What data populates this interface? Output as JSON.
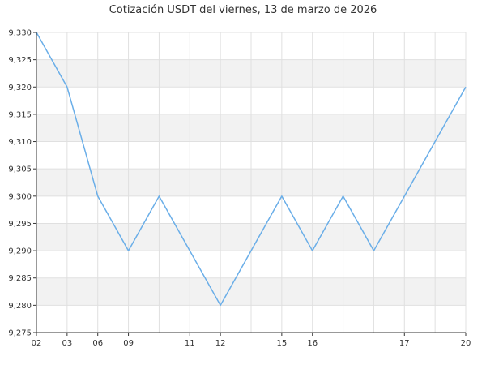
{
  "chart_data": {
    "type": "line",
    "title": "Cotización USDT del viernes, 13 de marzo de 2026",
    "xlabel": "",
    "ylabel": "",
    "x_tick_labels": [
      "02",
      "03",
      "06",
      "09",
      "11",
      "12",
      "15",
      "16",
      "17",
      "20"
    ],
    "x_tick_indices": [
      0,
      1,
      2,
      3,
      5,
      6,
      8,
      9,
      12,
      14
    ],
    "y_ticks": [
      "9,275",
      "9,280",
      "9,285",
      "9,290",
      "9,295",
      "9,300",
      "9,305",
      "9,310",
      "9,315",
      "9,320",
      "9,325",
      "9,330"
    ],
    "ylim": [
      9.275,
      9.33
    ],
    "grid": true,
    "legend": "none",
    "series": [
      {
        "values": [
          9.33,
          9.32,
          9.3,
          9.29,
          9.3,
          9.29,
          9.28,
          9.29,
          9.3,
          9.29,
          9.3,
          9.29,
          9.3,
          9.31,
          9.32
        ]
      }
    ],
    "colors": {
      "line": "#6aaee8",
      "band": "#f2f2f2",
      "grid": "#e0e0e0",
      "axis": "#333333"
    }
  }
}
